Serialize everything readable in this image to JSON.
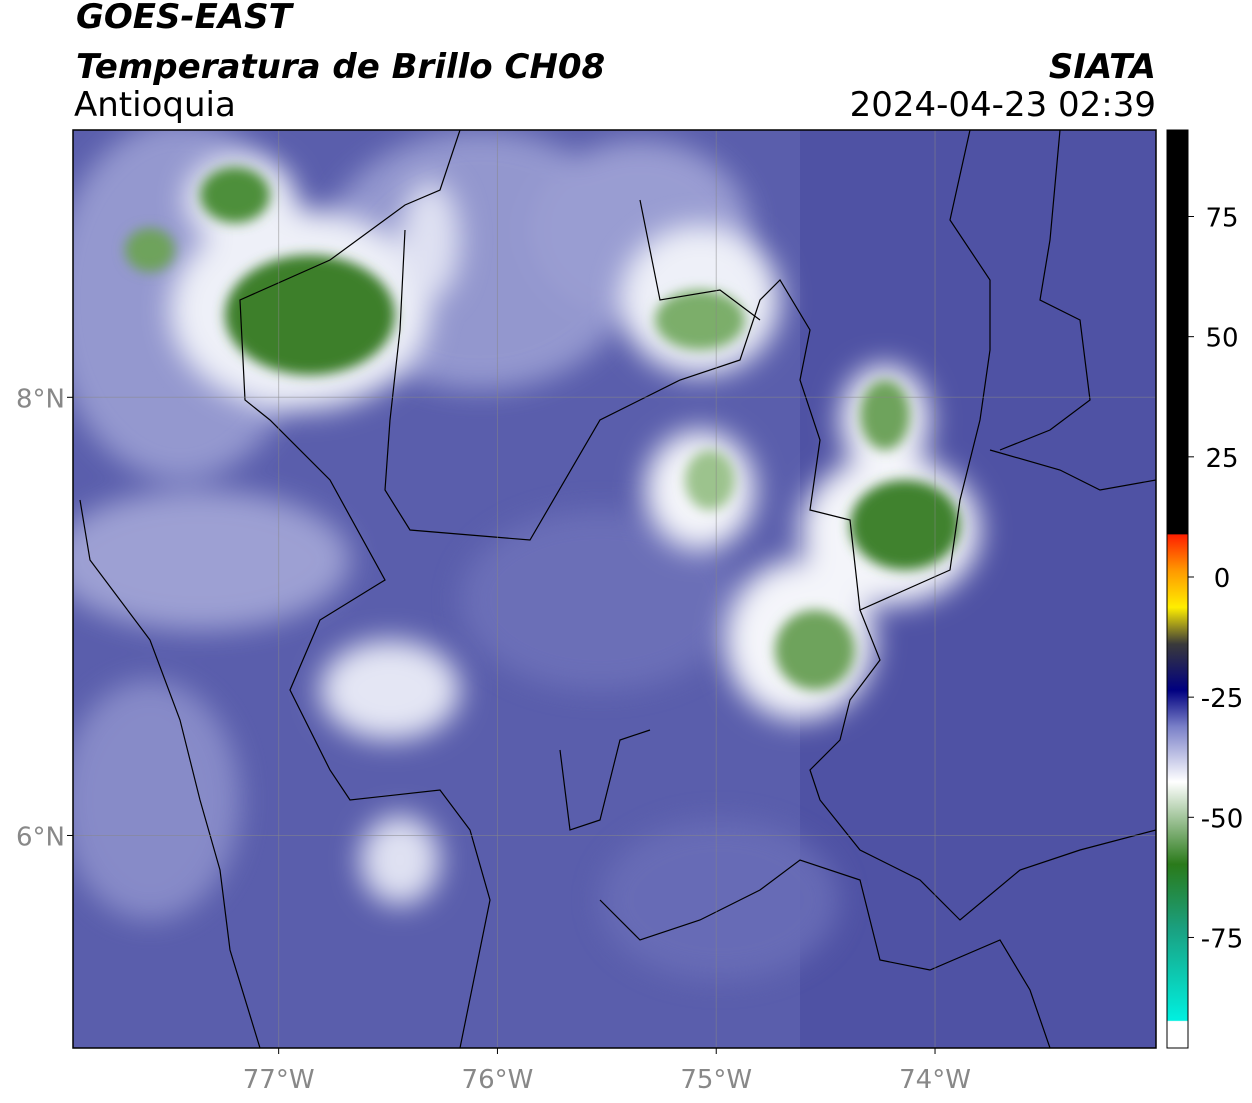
{
  "header": {
    "title": "GOES-EAST",
    "subtitle": "Temperatura de Brillo CH08",
    "region": "Antioquia",
    "source": "SIATA",
    "datetime": "2024-04-23 02:39"
  },
  "map": {
    "xlim": [
      -77.94,
      -72.99
    ],
    "ylim": [
      5.03,
      9.22
    ],
    "xticks": [
      {
        "value": -77,
        "label": "77°W"
      },
      {
        "value": -76,
        "label": "76°W"
      },
      {
        "value": -75,
        "label": "75°W"
      },
      {
        "value": -74,
        "label": "74°W"
      }
    ],
    "yticks": [
      {
        "value": 8,
        "label": "8°N"
      },
      {
        "value": 6,
        "label": "6°N"
      }
    ]
  },
  "colorbar": {
    "lim": [
      -98,
      93
    ],
    "ticks": [
      75,
      50,
      25,
      0,
      -25,
      -50,
      -75
    ]
  }
}
